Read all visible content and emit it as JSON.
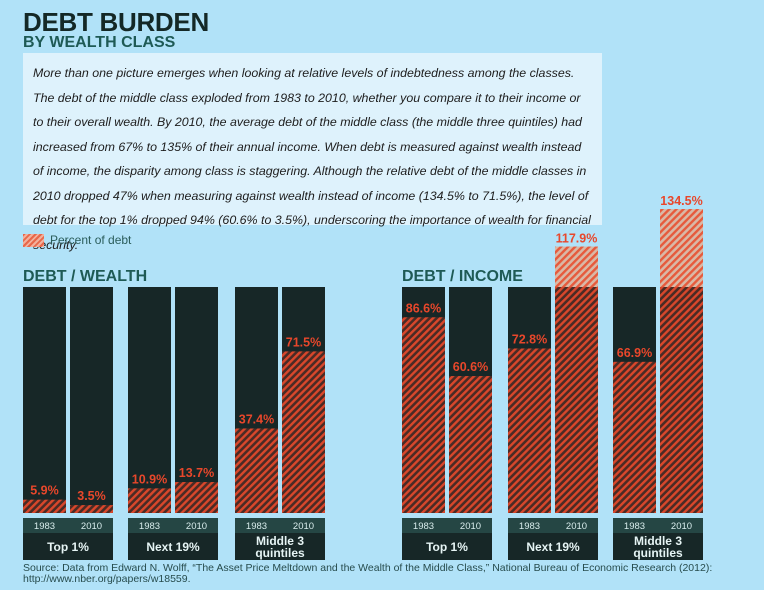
{
  "header": {
    "title": "DEBT BURDEN",
    "subtitle": "BY WEALTH CLASS"
  },
  "intro_text": "More than one picture emerges when looking at relative levels of indebtedness among the classes. The debt of the middle class exploded from 1983 to 2010, whether you compare it to their income or to their overall wealth. By 2010, the average debt of the middle class (the middle three quintiles) had increased from 67% to 135% of their annual income. When debt is measured against wealth instead of income, the disparity among class is staggering. Although the relative debt of the middle classes in 2010 dropped 47% when measuring against wealth instead of income (134.5% to 71.5%), the level of debt for the top 1% dropped 94% (60.6% to 3.5%), underscoring the importance of wealth for financial security.",
  "legend": {
    "label": "Percent of debt"
  },
  "colors": {
    "bar_background": "#172727",
    "hatch_stripe": "#d9472b",
    "hatch_dark": "#4a2b25",
    "hatch_light": "#d9b8a6",
    "value_label": "#e8472b",
    "year_row": "#254644",
    "group_label_row": "#172727"
  },
  "source": "Source: Data from Edward N. Wolff, “The Asset Price Meltdown and the Wealth of the Middle Class,” National Bureau of Economic Research (2012): http://www.nber.org/papers/w18559.",
  "chart_data": [
    {
      "type": "bar",
      "title": "DEBT / WEALTH",
      "ylabel": "Percent of debt",
      "ylim": [
        0,
        100
      ],
      "groups": [
        {
          "label": "Top 1%",
          "categories": [
            "1983",
            "2010"
          ],
          "values": [
            5.9,
            3.5
          ],
          "value_labels": [
            "5.9%",
            "3.5%"
          ]
        },
        {
          "label": "Next 19%",
          "categories": [
            "1983",
            "2010"
          ],
          "values": [
            10.9,
            13.7
          ],
          "value_labels": [
            "10.9%",
            "13.7%"
          ]
        },
        {
          "label": "Middle 3 quintiles",
          "categories": [
            "1983",
            "2010"
          ],
          "values": [
            37.4,
            71.5
          ],
          "value_labels": [
            "37.4%",
            "71.5%"
          ]
        }
      ]
    },
    {
      "type": "bar",
      "title": "DEBT / INCOME",
      "ylabel": "Percent of debt",
      "ylim": [
        0,
        100
      ],
      "overflow_above_100": true,
      "groups": [
        {
          "label": "Top 1%",
          "categories": [
            "1983",
            "2010"
          ],
          "values": [
            86.6,
            60.6
          ],
          "value_labels": [
            "86.6%",
            "60.6%"
          ]
        },
        {
          "label": "Next 19%",
          "categories": [
            "1983",
            "2010"
          ],
          "values": [
            72.8,
            117.9
          ],
          "value_labels": [
            "72.8%",
            "117.9%"
          ]
        },
        {
          "label": "Middle 3 quintiles",
          "categories": [
            "1983",
            "2010"
          ],
          "values": [
            66.9,
            134.5
          ],
          "value_labels": [
            "66.9%",
            "134.5%"
          ]
        }
      ]
    }
  ]
}
